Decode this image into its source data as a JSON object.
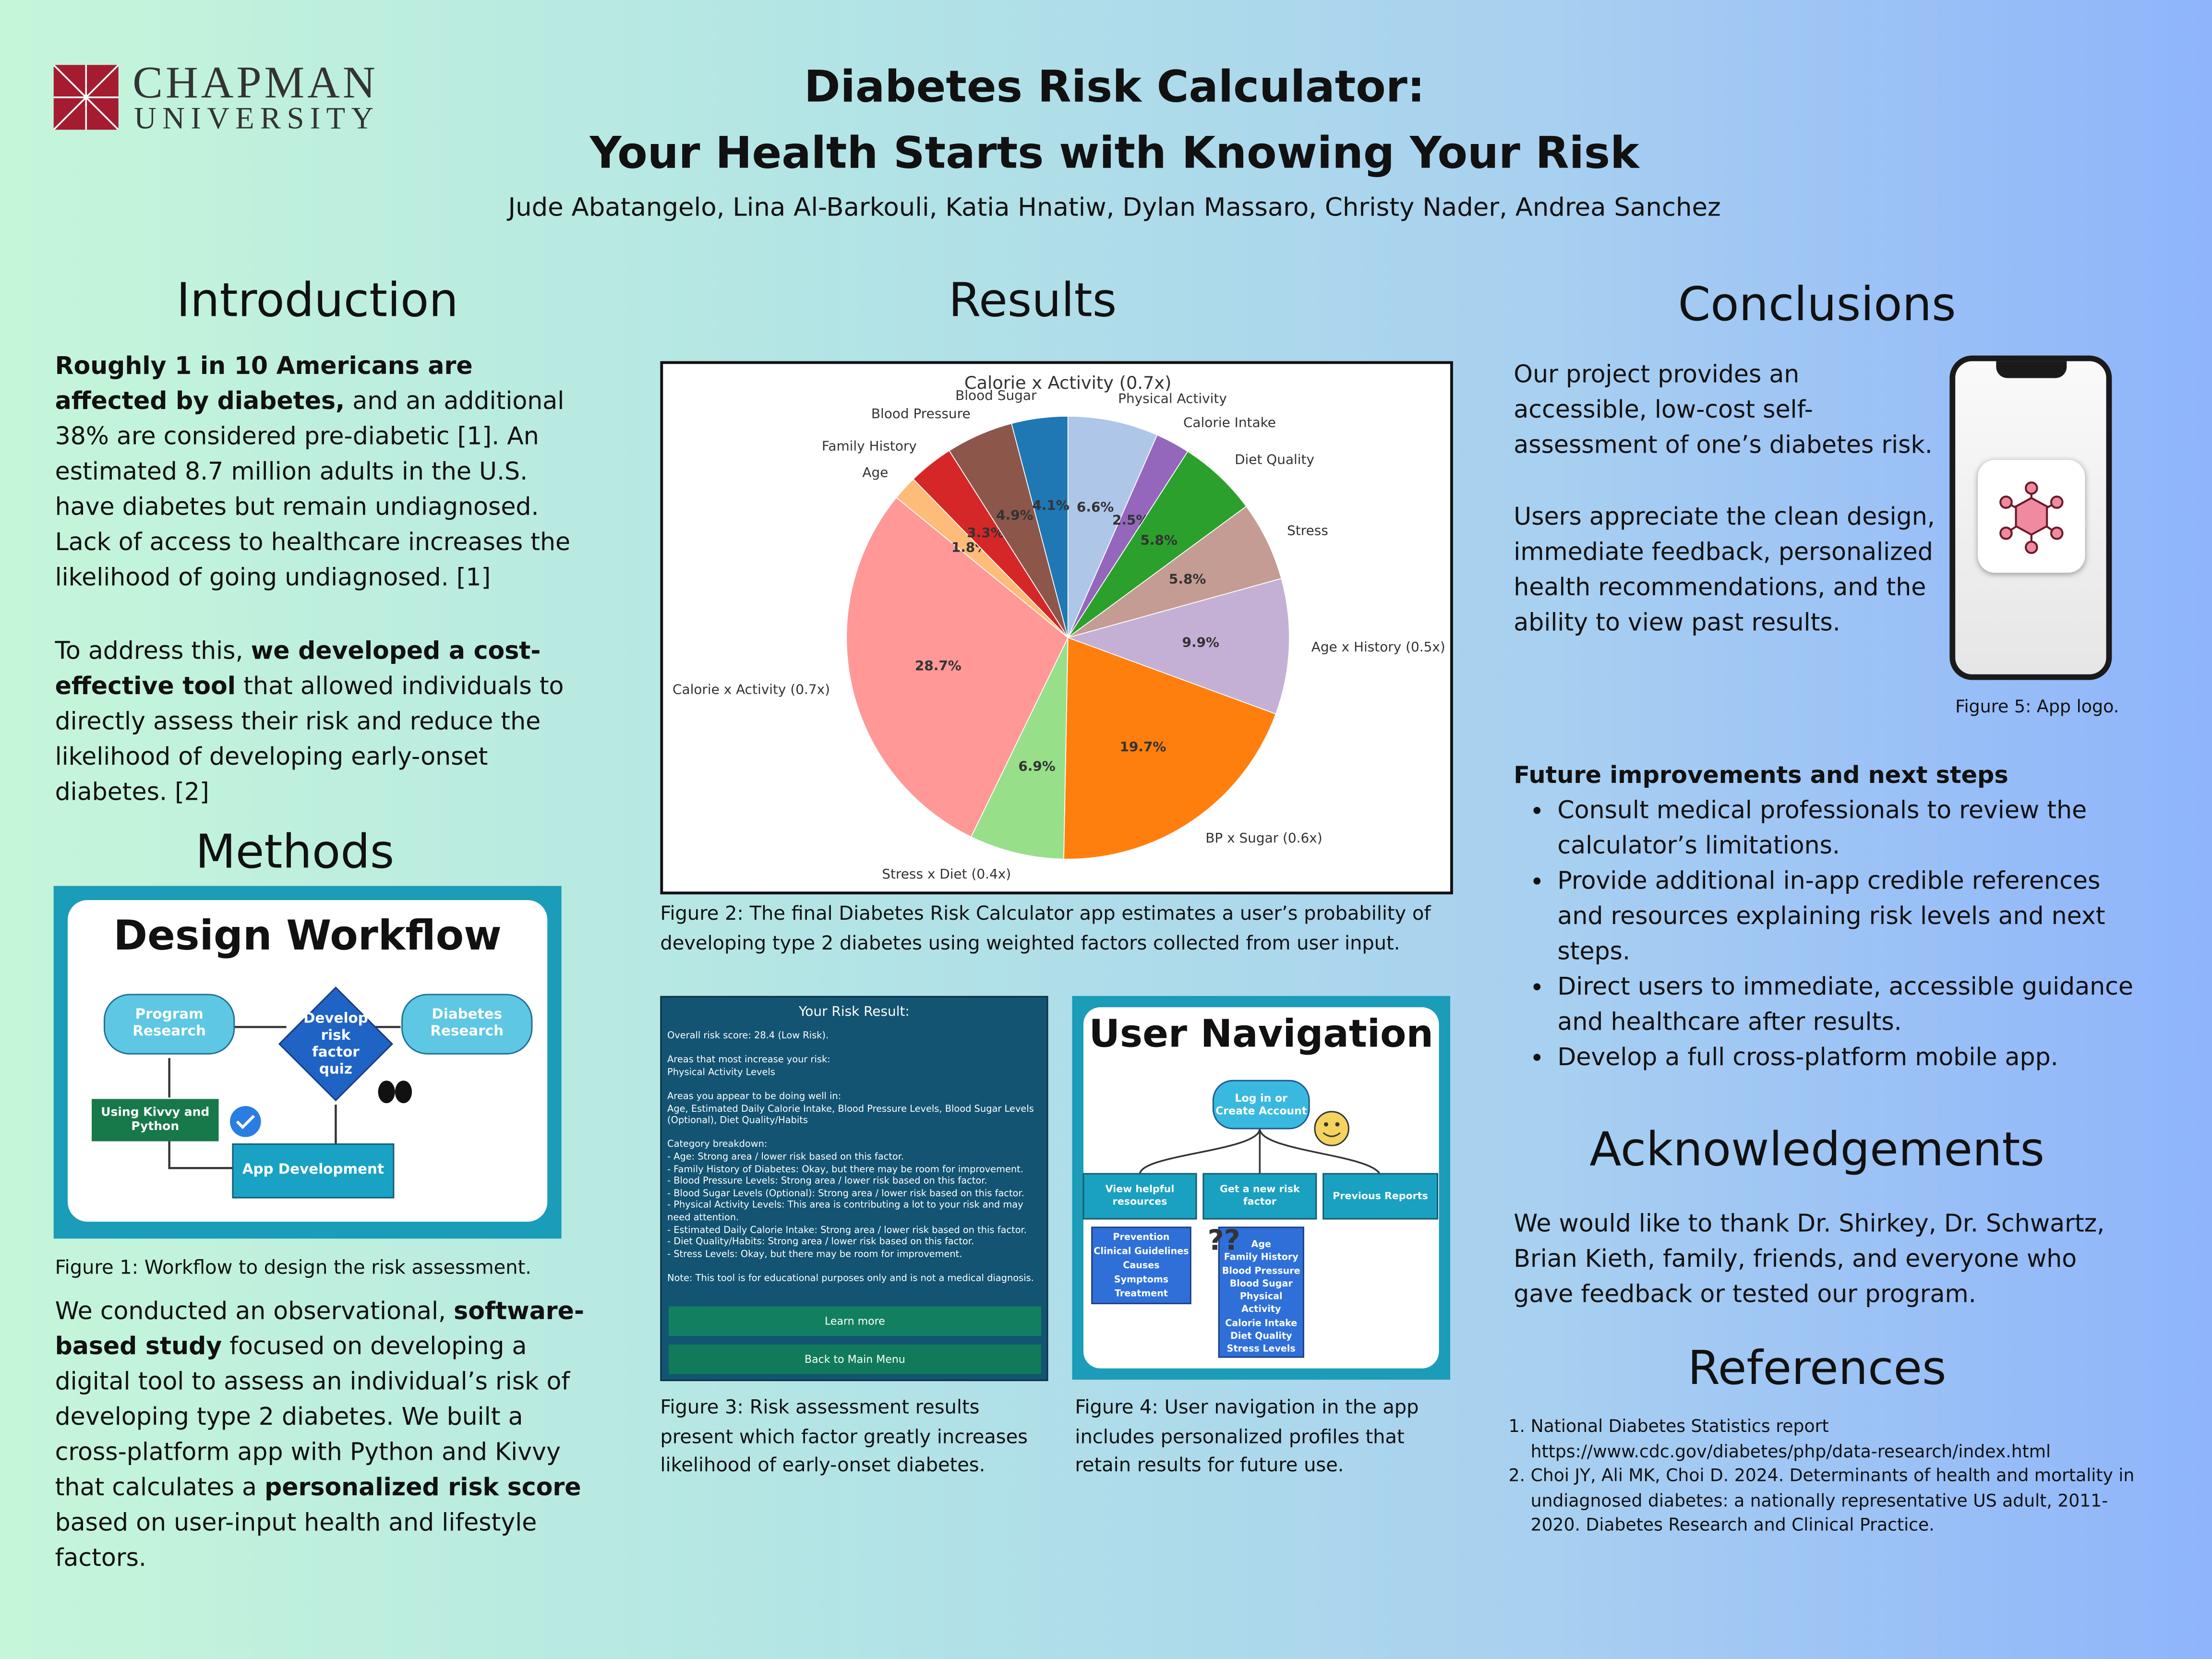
{
  "header": {
    "logo_line1": "CHAPMAN",
    "logo_line2": "UNIVERSITY",
    "title_line1": "Diabetes Risk Calculator:",
    "title_line2": "Your Health Starts with Knowing Your Risk",
    "authors": "Jude Abatangelo, Lina Al-Barkouli, Katia Hnatiw, Dylan Massaro, Christy Nader, Andrea Sanchez"
  },
  "introduction": {
    "heading": "Introduction",
    "paragraphs": [
      [
        {
          "text": "Roughly 1 in 10 Americans are affected by diabetes,",
          "bold": true
        },
        {
          "text": " and an additional 38% are considered pre-diabetic [1]. An estimated 8.7 million adults in the U.S. have diabetes but remain undiagnosed. Lack of access to healthcare increases the likelihood of going undiagnosed. [1]",
          "bold": false
        }
      ],
      [
        {
          "text": "To address this, ",
          "bold": false
        },
        {
          "text": "we developed a cost-effective tool",
          "bold": true
        },
        {
          "text": " that allowed individuals to directly assess their risk and reduce the likelihood of developing early-onset diabetes. [2]",
          "bold": false
        }
      ]
    ]
  },
  "methods": {
    "heading": "Methods",
    "figure1": {
      "title": "Design Workflow",
      "program_research": "Program Research",
      "develop_quiz": "Develop risk factor quiz",
      "diabetes_research": "Diabetes Research",
      "kivvy_python": "Using Kivvy and Python",
      "app_development": "App Development",
      "caption": "Figure 1: Workflow to design the risk assessment."
    },
    "paragraphs": [
      [
        {
          "text": "We conducted an observational, ",
          "bold": false
        },
        {
          "text": "software-based study",
          "bold": true
        },
        {
          "text": " focused on developing a digital tool to assess an individual’s risk of developing type 2 diabetes. We built a cross-platform app with Python and Kivvy that calculates a ",
          "bold": false
        },
        {
          "text": "personalized risk score",
          "bold": true
        },
        {
          "text": " based on user-input health and lifestyle factors.",
          "bold": false
        }
      ]
    ]
  },
  "results": {
    "heading": "Results",
    "figure2_caption": "Figure 2: The final Diabetes Risk Calculator app estimates a user’s probability of developing type 2 diabetes using weighted factors collected from user input.",
    "figure3": {
      "title": "Your Risk Result:",
      "groups": [
        [
          "Overall risk score: 28.4 (Low Risk)."
        ],
        [
          "Areas that most increase your risk:",
          "Physical Activity Levels"
        ],
        [
          "Areas you appear to be doing well in:",
          "Age, Estimated Daily Calorie Intake, Blood Pressure Levels, Blood Sugar Levels (Optional), Diet Quality/Habits"
        ],
        [
          "Category breakdown:",
          "- Age: Strong area / lower risk based on this factor.",
          "- Family History of Diabetes: Okay, but there may be room for improvement.",
          "- Blood Pressure Levels: Strong area / lower risk based on this factor.",
          "- Blood Sugar Levels (Optional): Strong area / lower risk based on this factor.",
          "- Physical Activity Levels: This area is contributing a lot to your risk and may need attention.",
          "- Estimated Daily Calorie Intake: Strong area / lower risk based on this factor.",
          "- Diet Quality/Habits: Strong area / lower risk based on this factor.",
          "- Stress Levels: Okay, but there may be room for improvement."
        ],
        [
          "Note: This tool is for educational purposes only and is not a medical diagnosis."
        ]
      ],
      "buttons": [
        "Learn more",
        "Back to Main Menu"
      ],
      "caption": "Figure 3: Risk assessment results present which factor greatly increases likelihood of early-onset diabetes."
    },
    "figure4": {
      "title": "User Navigation",
      "login": "Log in or Create Account",
      "resources": "View helpful resources",
      "new_risk": "Get a new risk factor",
      "previous": "Previous Reports",
      "resource_items": [
        "Prevention",
        "Clinical Guidelines",
        "Causes",
        "Symptoms",
        "Treatment"
      ],
      "risk_items": [
        "Age",
        "Family History",
        "Blood Pressure",
        "Blood Sugar",
        "Physical Activity",
        "Calorie Intake",
        "Diet Quality",
        "Stress Levels"
      ],
      "caption": "Figure 4: User navigation in the app includes personalized profiles that retain results for future use."
    }
  },
  "conclusions": {
    "heading": "Conclusions",
    "paragraph1": "Our project provides an accessible, low-cost self-assessment of one’s diabetes risk.",
    "paragraph2": "Users appreciate the clean design, immediate feedback, personalized health recommendations, and the ability to view past results.",
    "figure5_caption": "Figure 5: App logo.",
    "future_heading": "Future improvements and next steps",
    "future_items": [
      "Consult medical professionals to review the calculator’s limitations.",
      "Provide additional in-app credible references and resources explaining risk levels and next steps.",
      "Direct users to immediate, accessible guidance and healthcare after results.",
      "Develop a full cross-platform mobile app."
    ]
  },
  "acknowledgements": {
    "heading": "Acknowledgements",
    "text": "We would like to thank Dr. Shirkey, Dr. Schwartz, Brian Kieth, family, friends, and everyone who gave feedback or tested our program."
  },
  "references": {
    "heading": "References",
    "items": [
      "National Diabetes Statistics report https://www.cdc.gov/diabetes/php/data-research/index.html",
      "Choi JY, Ali MK, Choi D. 2024. Determinants of health and mortality in undiagnosed diabetes: a nationally representative US adult, 2011-2020. Diabetes Research and Clinical Practice."
    ]
  },
  "chart_data": {
    "type": "pie",
    "title": "Calorie x Activity (0.7x)",
    "categories": [
      "Physical Activity",
      "Calorie Intake",
      "Diet Quality",
      "Stress",
      "Age x History (0.5x)",
      "BP x Sugar (0.6x)",
      "Stress x Diet (0.4x)",
      "Calorie x Activity (0.7x)",
      "Age",
      "Family History",
      "Blood Pressure",
      "Blood Sugar"
    ],
    "values": [
      6.6,
      2.5,
      5.8,
      5.8,
      9.9,
      19.7,
      6.9,
      28.7,
      1.8,
      3.3,
      4.9,
      4.1
    ],
    "value_labels": [
      "6.6%",
      "2.5%",
      "5.8%",
      "5.8%",
      "9.9%",
      "19.7%",
      "6.9%",
      "28.7%",
      "1.8%",
      "3.3%",
      "4.9%",
      "4.1%"
    ],
    "colors": [
      "#aec7e8",
      "#9467bd",
      "#2ca02c",
      "#c49c94",
      "#c5b0d5",
      "#ff7f0e",
      "#98df8a",
      "#ff9896",
      "#ffbb78",
      "#d62728",
      "#8c564b",
      "#1f77b4"
    ]
  }
}
